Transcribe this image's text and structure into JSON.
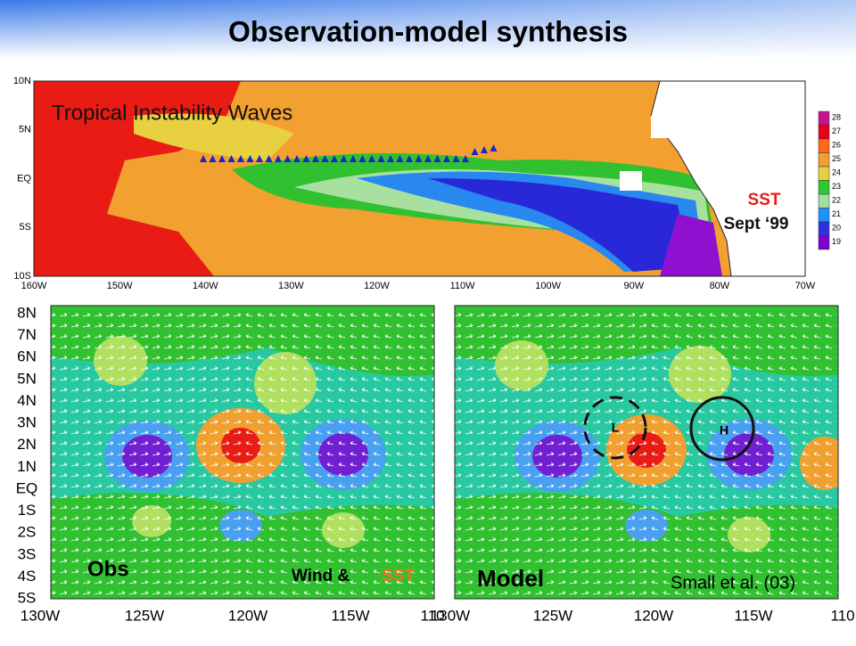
{
  "title": "Observation-model synthesis",
  "top_map": {
    "label": "Tropical Instability Waves",
    "sst_label": "SST",
    "date_label": "Sept ‘99",
    "lat_labels": [
      "10N",
      "5N",
      "EQ",
      "5S",
      "10S"
    ],
    "lon_labels": [
      "160W",
      "150W",
      "140W",
      "130W",
      "120W",
      "110W",
      "100W",
      "90W",
      "80W",
      "70W"
    ],
    "colorbar_labels": [
      "28",
      "27",
      "26",
      "25",
      "24",
      "23",
      "22",
      "21",
      "20",
      "19"
    ]
  },
  "left_panel": {
    "label": "Obs",
    "legend_wind": "Wind &",
    "legend_sst": "SST",
    "lat_labels": [
      "8N",
      "7N",
      "6N",
      "5N",
      "4N",
      "3N",
      "2N",
      "1N",
      "EQ",
      "1S",
      "2S",
      "3S",
      "4S",
      "5S"
    ],
    "lon_labels": [
      "130W",
      "125W",
      "120W",
      "115W",
      "110"
    ]
  },
  "right_panel": {
    "label": "Model",
    "citation": "Small et al. (03)",
    "low_label": "L",
    "high_label": "H",
    "lon_labels": [
      "130W",
      "125W",
      "120W",
      "115W",
      "110"
    ]
  }
}
